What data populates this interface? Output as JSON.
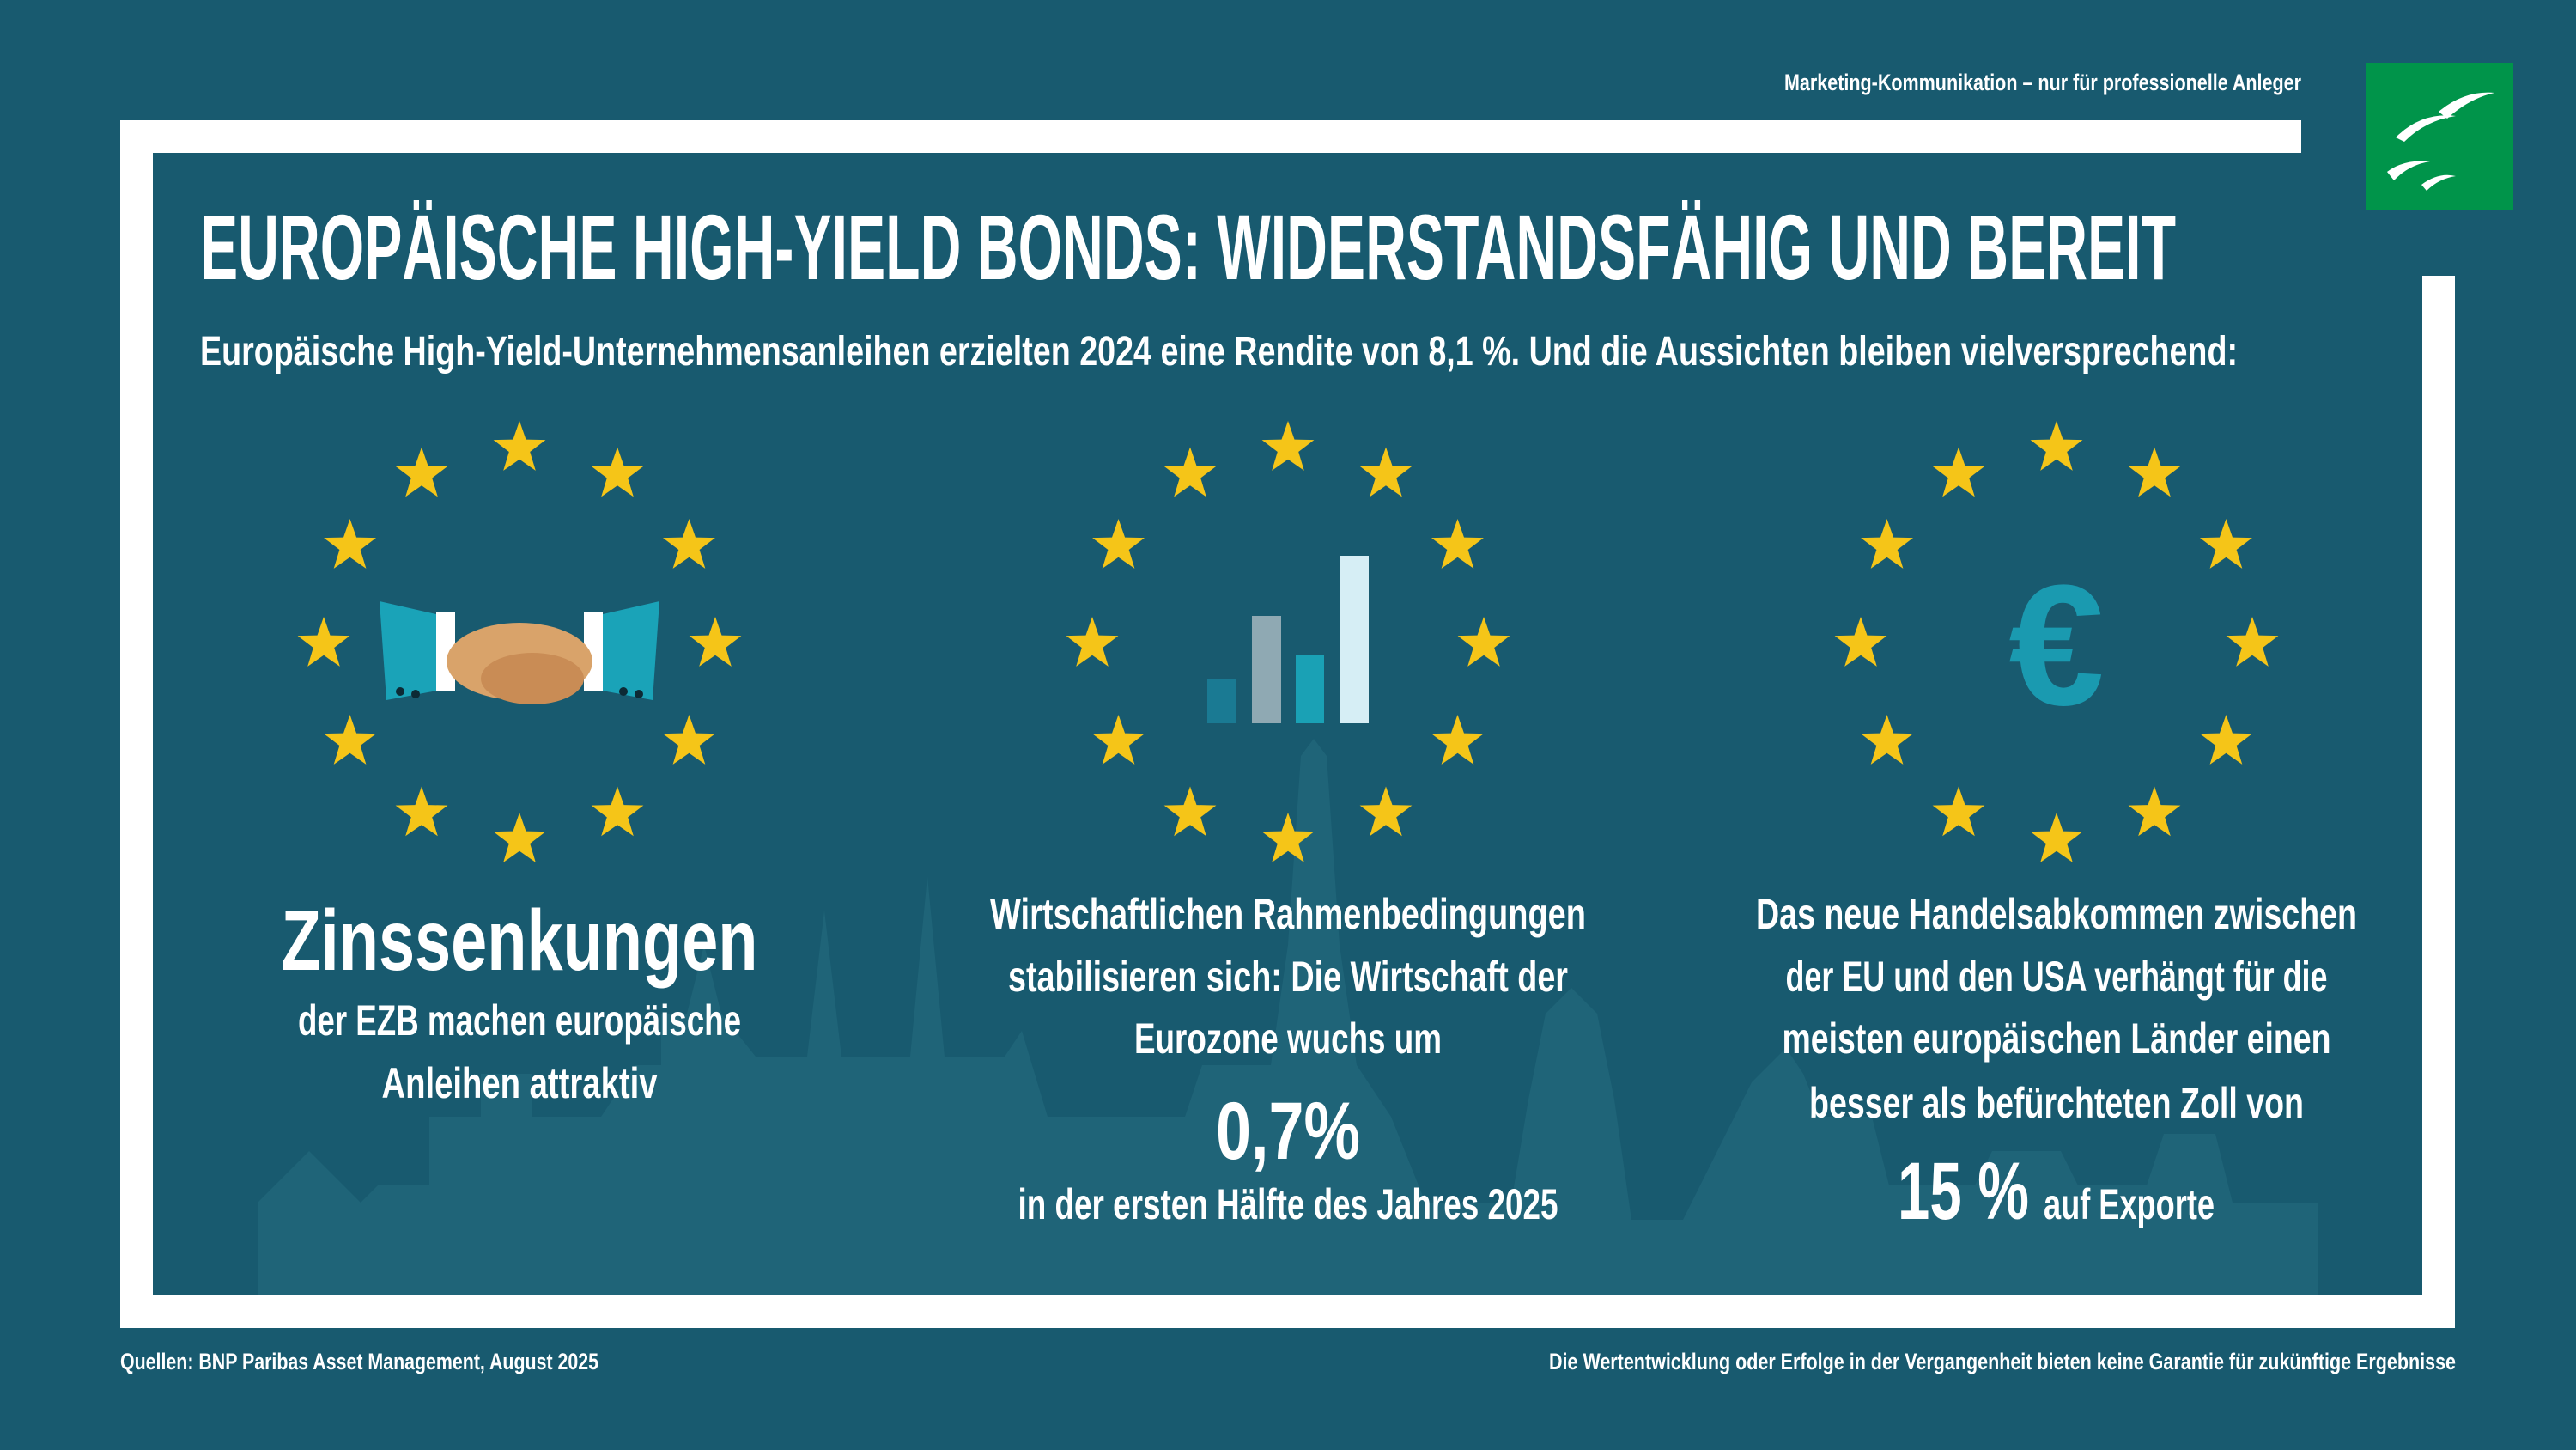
{
  "header": {
    "disclaimer": "Marketing-Kommunikation – nur für professionelle Anleger",
    "title": "EUROPÄISCHE HIGH-YIELD BONDS: WIDERSTANDSFÄHIG UND BEREIT",
    "subtitle": "Europäische High-Yield-Unternehmensanleihen erzielten 2024 eine Rendite von 8,1 %. Und die Aussichten bleiben vielversprechend:"
  },
  "panels": [
    {
      "headline": "Zinssenkungen",
      "lines": [
        "der EZB machen europäische",
        "Anleihen attraktiv"
      ]
    },
    {
      "lines": [
        "Wirtschaftlichen Rahmenbedingungen",
        "stabilisieren sich: Die Wirtschaft der",
        "Eurozone wuchs um"
      ],
      "figure": "0,7%",
      "after": "in der ersten Hälfte des Jahres 2025"
    },
    {
      "icon": "€",
      "lines": [
        "Das neue Handelsabkommen zwischen",
        "der EU und den USA verhängt für die",
        "meisten europäischen Länder einen",
        "besser als befürchteten Zoll von"
      ],
      "figure": "15 %",
      "after": "auf Exporte"
    }
  ],
  "footer": {
    "source": "Quellen: BNP Paribas Asset Management, August 2025",
    "disclaimer": "Die Wertentwicklung oder Erfolge in der Vergangenheit bieten keine Garantie für zukünftige Ergebnisse"
  }
}
